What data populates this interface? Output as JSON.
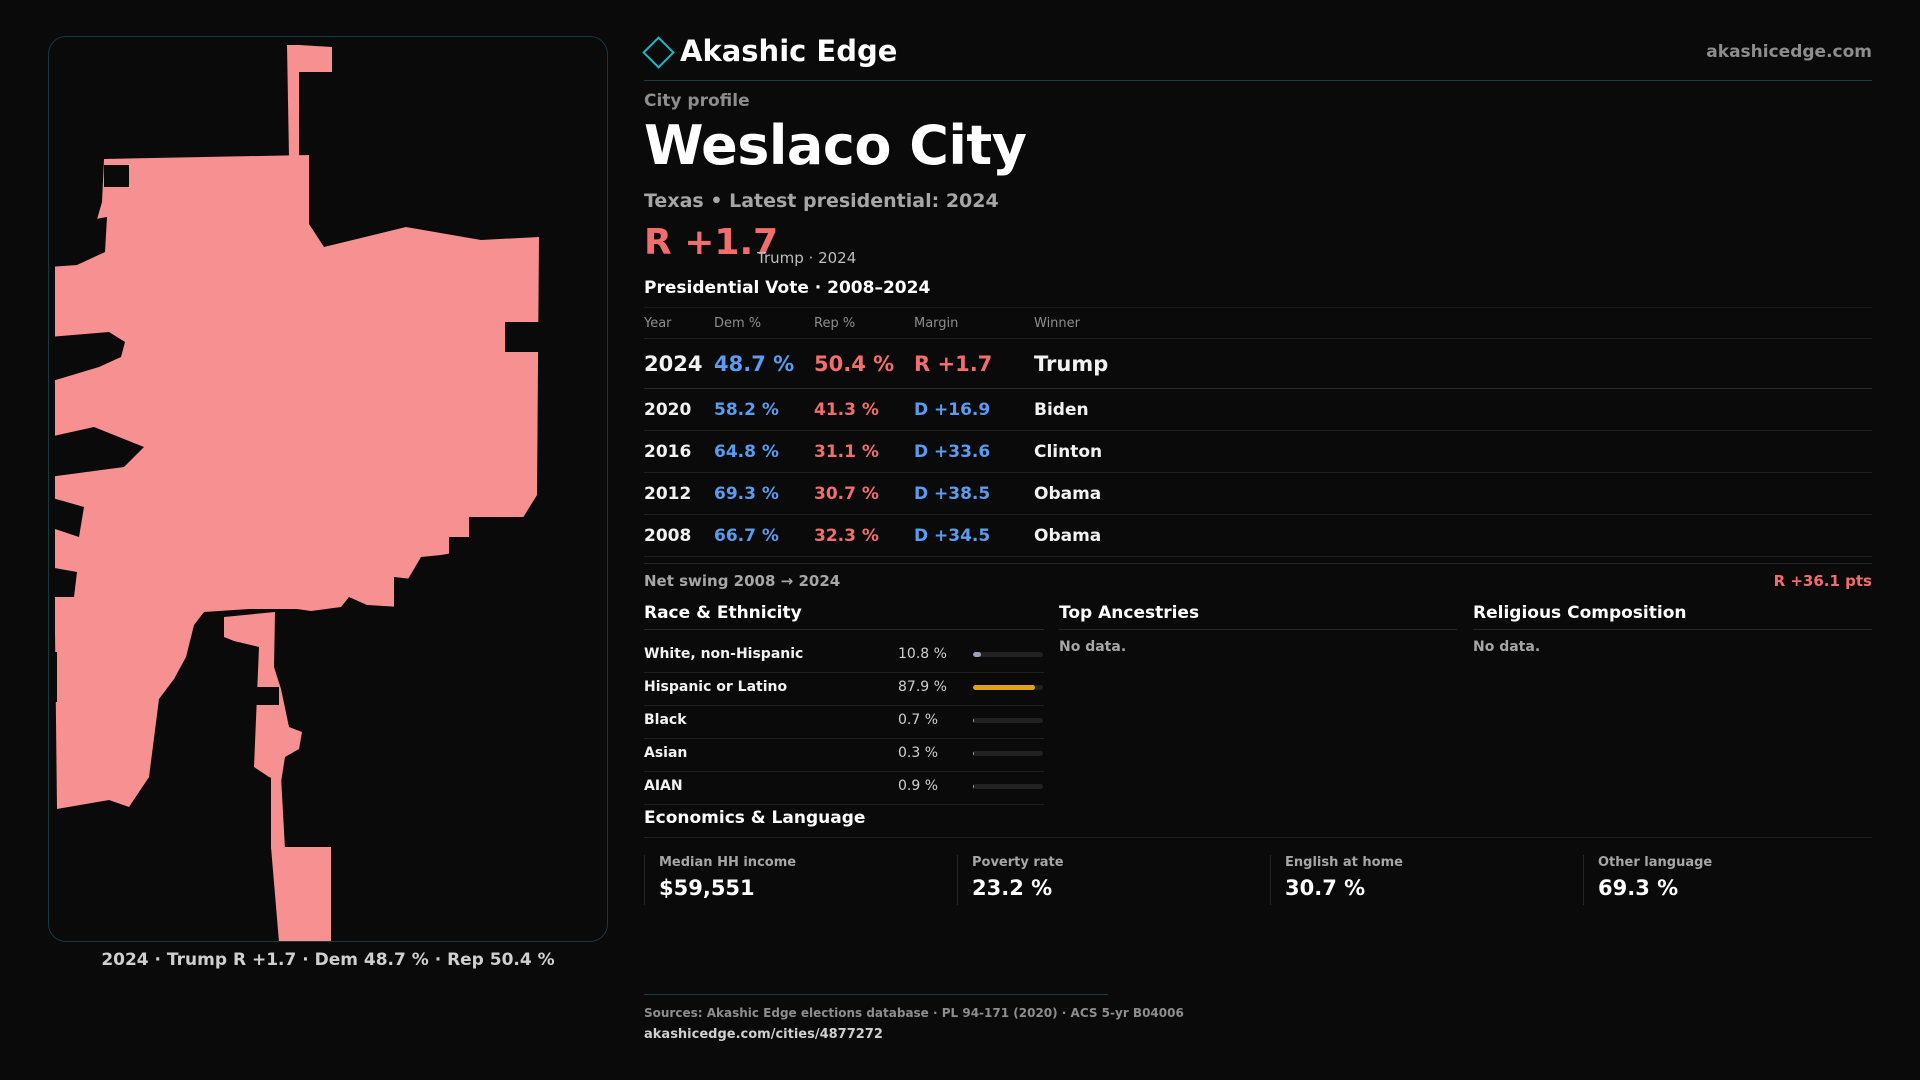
{
  "brand": {
    "name": "Akashic Edge",
    "url": "akashicedge.com"
  },
  "profile": {
    "label": "City profile",
    "title": "Weslaco City",
    "subtitle": "Texas • Latest presidential: 2024",
    "margin": "R +1.7",
    "margin_note": "Trump · 2024"
  },
  "map": {
    "caption": "2024 · Trump R +1.7 · Dem 48.7 % · Rep 50.4 %",
    "fill": "#f79090"
  },
  "results": {
    "title": "Presidential Vote · 2008–2024",
    "headers": [
      "Year",
      "Dem %",
      "Rep %",
      "Margin",
      "Winner"
    ],
    "rows": [
      {
        "year": "2024",
        "dem": "48.7 %",
        "rep": "50.4 %",
        "margin": "R +1.7",
        "winner": "Trump",
        "party": "rep"
      },
      {
        "year": "2020",
        "dem": "58.2 %",
        "rep": "41.3 %",
        "margin": "D +16.9",
        "winner": "Biden",
        "party": "dem"
      },
      {
        "year": "2016",
        "dem": "64.8 %",
        "rep": "31.1 %",
        "margin": "D +33.6",
        "winner": "Clinton",
        "party": "dem"
      },
      {
        "year": "2012",
        "dem": "69.3 %",
        "rep": "30.7 %",
        "margin": "D +38.5",
        "winner": "Obama",
        "party": "dem"
      },
      {
        "year": "2008",
        "dem": "66.7 %",
        "rep": "32.3 %",
        "margin": "D +34.5",
        "winner": "Obama",
        "party": "dem"
      }
    ],
    "swing_label": "Net swing 2008 → 2024",
    "swing_value": "R +36.1 pts"
  },
  "race": {
    "title": "Race & Ethnicity",
    "rows": [
      {
        "name": "White, non-Hispanic",
        "pct": "10.8 %",
        "value": 10.8,
        "color": "#9aa3b5"
      },
      {
        "name": "Hispanic or Latino",
        "pct": "87.9 %",
        "value": 87.9,
        "color": "#e0a21b"
      },
      {
        "name": "Black",
        "pct": "0.7 %",
        "value": 0.7,
        "color": "#9aa3b5"
      },
      {
        "name": "Asian",
        "pct": "0.3 %",
        "value": 0.3,
        "color": "#9aa3b5"
      },
      {
        "name": "AIAN",
        "pct": "0.9 %",
        "value": 0.9,
        "color": "#9aa3b5"
      }
    ]
  },
  "ancestries": {
    "title": "Top Ancestries",
    "empty": "No data."
  },
  "religion": {
    "title": "Religious Composition",
    "empty": "No data."
  },
  "economics": {
    "title": "Economics & Language",
    "stats": [
      {
        "label": "Median HH income",
        "value": "$59,551"
      },
      {
        "label": "Poverty rate",
        "value": "23.2 %"
      },
      {
        "label": "English at home",
        "value": "30.7 %"
      },
      {
        "label": "Other language",
        "value": "69.3 %"
      }
    ]
  },
  "sources": {
    "text": "Sources: Akashic Edge elections database · PL 94-171 (2020) · ACS 5-yr B04006",
    "url": "akashicedge.com/cities/4877272"
  }
}
